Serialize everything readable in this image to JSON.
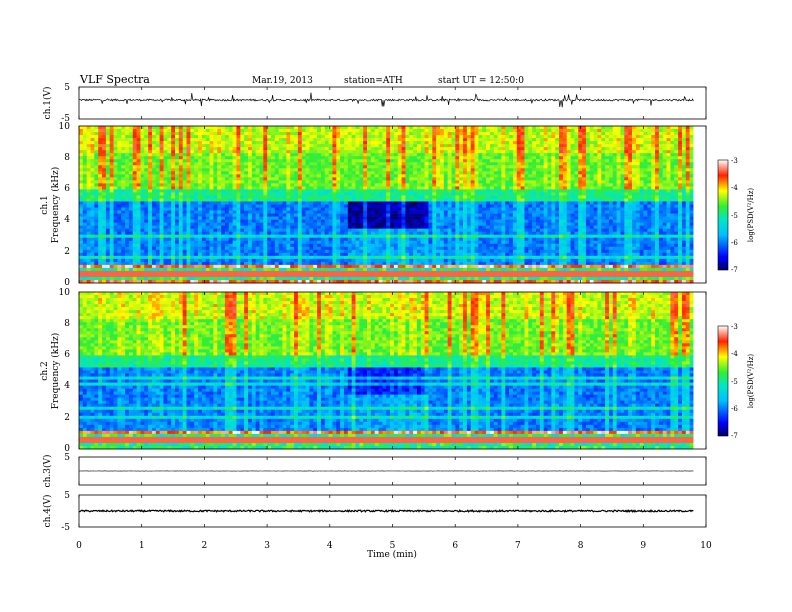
{
  "header": {
    "title": "VLF Spectra",
    "date": "Mar.19, 2013",
    "station": "station=ATH",
    "start": "start  UT =  12:50:0"
  },
  "colors": {
    "colormap": [
      "#000066",
      "#0000ff",
      "#00d5ff",
      "#22ee55",
      "#ffff00",
      "#ff3300",
      "#ffffff"
    ]
  },
  "chart_data": [
    {
      "type": "line",
      "panel": "ch.1 waveform",
      "ylabel": "ch.1(V)",
      "ylim": [
        -5,
        5
      ],
      "yticks": [
        "5",
        "-5"
      ],
      "xlim": [
        0,
        10
      ],
      "description_values": {
        "baseline": 0,
        "noise_amplitude": 0.6,
        "spike_amplitude": 2.5
      }
    },
    {
      "type": "heatmap",
      "panel": "ch.1 spectrogram",
      "ylabel": "ch.1",
      "ylabel2": "Frequency (kHz)",
      "ylim": [
        0,
        10
      ],
      "xlim": [
        0,
        9.8
      ],
      "yticks": [
        "0",
        "2",
        "4",
        "6",
        "8",
        "10"
      ],
      "colorbar": {
        "label": "log(PSD(V²/Hz)",
        "ticks": [
          "-3",
          "-4",
          "-5",
          "-6",
          "-7"
        ],
        "range": [
          -7,
          -3
        ]
      },
      "quiet_interval_min": [
        4.3,
        5.6
      ]
    },
    {
      "type": "heatmap",
      "panel": "ch.2 spectrogram",
      "ylabel": "ch.2",
      "ylabel2": "Frequency (kHz)",
      "ylim": [
        0,
        10
      ],
      "xlim": [
        0,
        9.8
      ],
      "yticks": [
        "0",
        "2",
        "4",
        "6",
        "8",
        "10"
      ],
      "colorbar": {
        "label": "log(PSD(V²/Hz)",
        "ticks": [
          "-3",
          "-4",
          "-5",
          "-6",
          "-7"
        ],
        "range": [
          -7,
          -3
        ]
      },
      "quiet_interval_min": [
        4.3,
        5.6
      ]
    },
    {
      "type": "line",
      "panel": "ch.3 waveform",
      "ylabel": "ch.3(V)",
      "ylim": [
        -5,
        5
      ],
      "yticks": [
        "5"
      ],
      "xlim": [
        0,
        10
      ],
      "description_values": {
        "baseline": 0,
        "noise_amplitude": 0.05
      }
    },
    {
      "type": "line",
      "panel": "ch.4 waveform",
      "ylabel": "ch.4(V)",
      "ylim": [
        -5,
        5
      ],
      "yticks": [
        "5",
        "-5"
      ],
      "xlim": [
        0,
        10
      ],
      "xlabel": "Time (min)",
      "xticks": [
        "0",
        "1",
        "2",
        "3",
        "4",
        "5",
        "6",
        "7",
        "8",
        "9",
        "10"
      ],
      "description_values": {
        "baseline": 0,
        "noise_amplitude": 0.3
      }
    }
  ]
}
